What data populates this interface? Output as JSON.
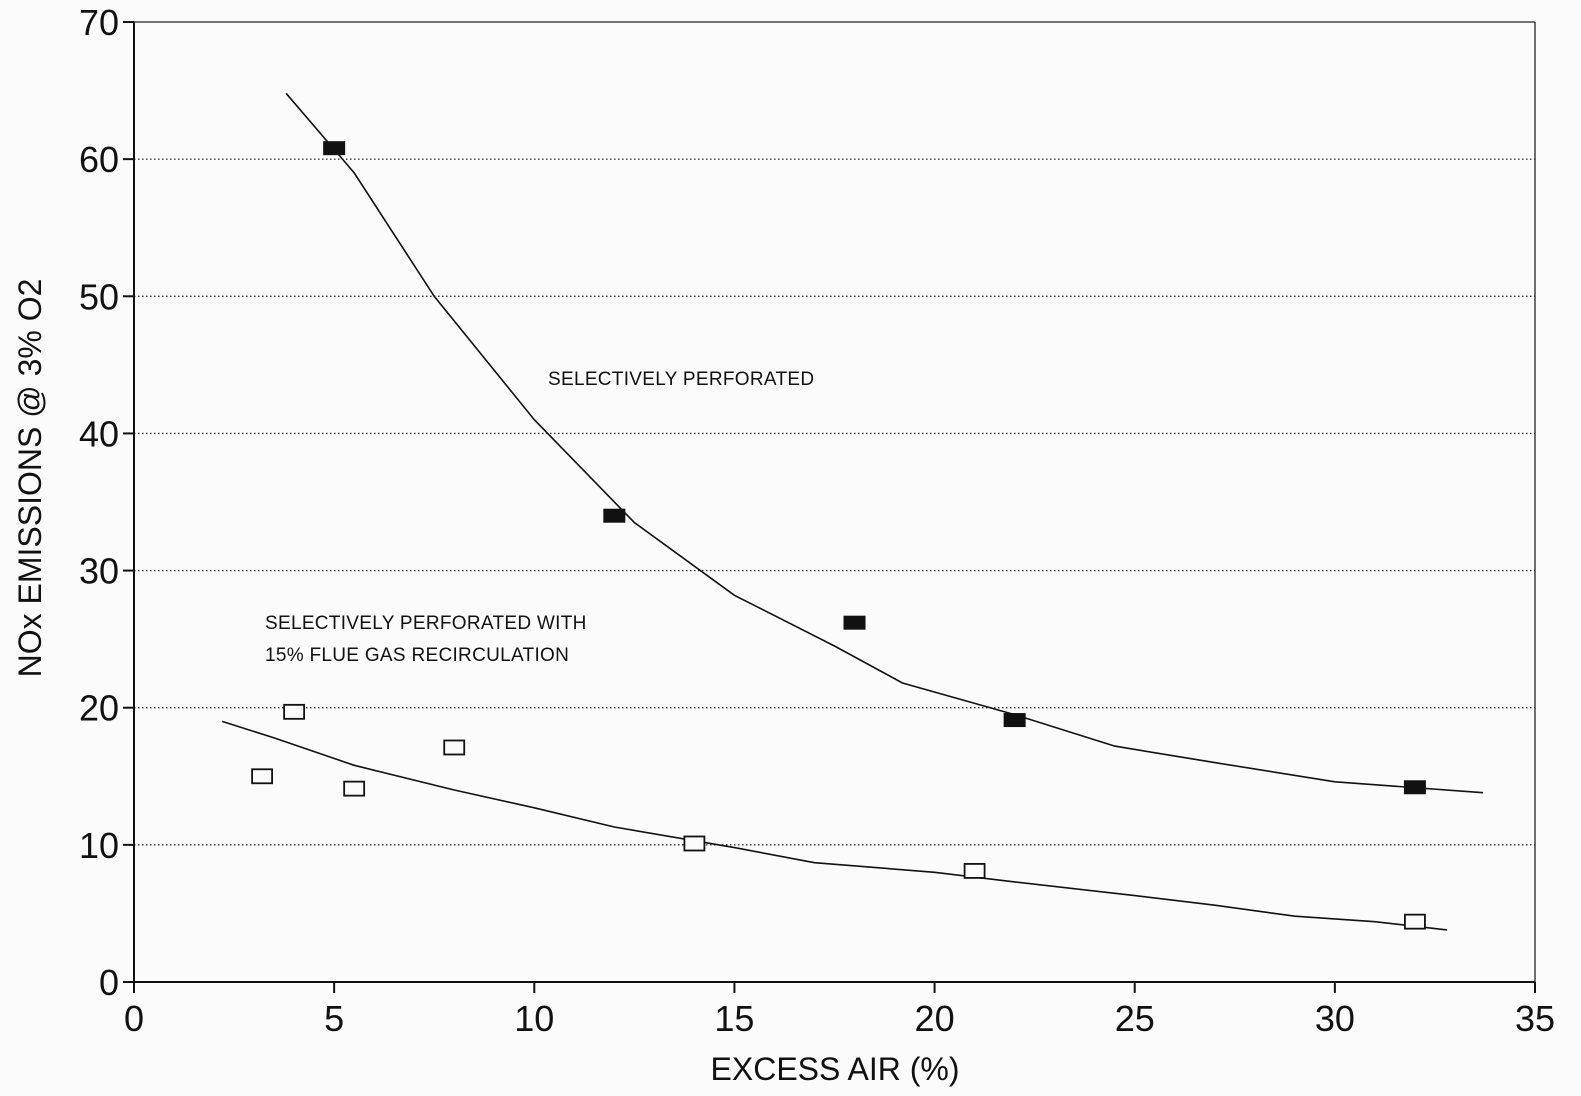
{
  "chart_data": {
    "type": "scatter",
    "title": "",
    "xlabel": "EXCESS AIR (%)",
    "ylabel": "NOx EMISSIONS @ 3% O2",
    "xlim": [
      0,
      35
    ],
    "ylim": [
      0,
      70
    ],
    "xticks": [
      0,
      5,
      10,
      15,
      20,
      25,
      30,
      35
    ],
    "yticks": [
      0,
      10,
      20,
      30,
      40,
      50,
      60,
      70
    ],
    "grid": "horizontal dotted",
    "legend": "none",
    "annotations": [
      {
        "id": "sp",
        "text": "SELECTIVELY PERFORATED"
      },
      {
        "id": "fgr1",
        "text": "SELECTIVELY PERFORATED WITH"
      },
      {
        "id": "fgr2",
        "text": "15% FLUE GAS RECIRCULATION"
      }
    ],
    "series": [
      {
        "marker": "filled-square",
        "color": "#111111",
        "points": [
          [
            5,
            60.8
          ],
          [
            12,
            34
          ],
          [
            18,
            26.2
          ],
          [
            22,
            19.1
          ],
          [
            32,
            14.2
          ]
        ],
        "fit": [
          [
            3.8,
            64.8
          ],
          [
            5.5,
            59
          ],
          [
            7.5,
            50
          ],
          [
            10,
            41
          ],
          [
            12.5,
            33.5
          ],
          [
            15,
            28.2
          ],
          [
            17.5,
            24.5
          ],
          [
            19.2,
            21.8
          ],
          [
            22,
            19.5
          ],
          [
            24.5,
            17.2
          ],
          [
            27,
            16
          ],
          [
            30,
            14.6
          ],
          [
            33.7,
            13.8
          ]
        ]
      },
      {
        "marker": "open-square",
        "color": "#111111",
        "points": [
          [
            3.2,
            15
          ],
          [
            4,
            19.7
          ],
          [
            5.5,
            14.1
          ],
          [
            8,
            17.1
          ],
          [
            14,
            10.1
          ],
          [
            21,
            8.1
          ],
          [
            32,
            4.4
          ]
        ],
        "fit": [
          [
            2.2,
            19
          ],
          [
            3.5,
            17.8
          ],
          [
            5.5,
            15.8
          ],
          [
            8,
            14
          ],
          [
            10,
            12.7
          ],
          [
            12,
            11.3
          ],
          [
            15,
            9.8
          ],
          [
            17,
            8.7
          ],
          [
            20,
            8
          ],
          [
            22,
            7.3
          ],
          [
            25,
            6.3
          ],
          [
            27,
            5.6
          ],
          [
            29,
            4.8
          ],
          [
            31,
            4.4
          ],
          [
            32.8,
            3.8
          ]
        ]
      }
    ]
  }
}
